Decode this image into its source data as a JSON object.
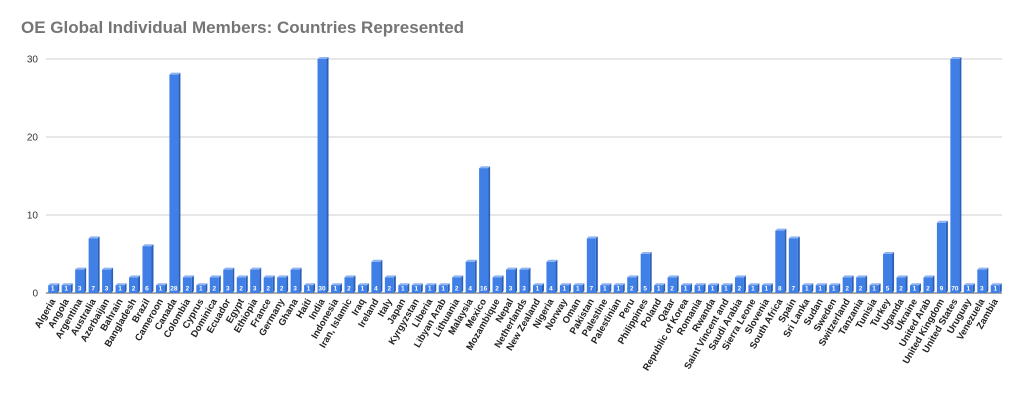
{
  "chart_data": {
    "type": "bar",
    "title": "OE Global Individual Members: Countries Represented",
    "xlabel": "",
    "ylabel": "",
    "ylim": [
      0,
      30
    ],
    "yticks": [
      0,
      10,
      20,
      30
    ],
    "grid": true,
    "legend": "none",
    "bar_color": "#3f7fe6",
    "categories": [
      "Algeria",
      "Angola",
      "Argentina",
      "Australia",
      "Azerbaijan",
      "Bahrain",
      "Bangladesh",
      "Brazil",
      "Cameroon",
      "Canada",
      "Colombia",
      "Cyprus",
      "Dominica",
      "Ecuador",
      "Egypt",
      "Ethiopia",
      "France",
      "Germany",
      "Ghana",
      "Haiti",
      "India",
      "Indonesia",
      "Iran, Islamic",
      "Iraq",
      "Ireland",
      "Italy",
      "Japan",
      "Kyrgyzstan",
      "Liberia",
      "Libyan Arab",
      "Lithuania",
      "Malaysia",
      "Mexico",
      "Mozambique",
      "Nepal",
      "Netherlands",
      "New Zealand",
      "Nigeria",
      "Norway",
      "Oman",
      "Pakistan",
      "Palestine",
      "Palestinian",
      "Peru",
      "Philippines",
      "Poland",
      "Qatar",
      "Republic of Korea",
      "Romania",
      "Rwanda",
      "Saint Vincent and",
      "Saudi Arabia",
      "Sierra Leone",
      "Slovenia",
      "South Africa",
      "Spain",
      "Sri Lanka",
      "Sudan",
      "Sweden",
      "Switzerland",
      "Tanzania",
      "Tunisia",
      "Turkey",
      "Uganda",
      "Ukraine",
      "United Arab",
      "United Kingdom",
      "United States",
      "Uruguay",
      "Venezuela",
      "Zambia"
    ],
    "values": [
      1,
      1,
      3,
      7,
      3,
      1,
      2,
      6,
      1,
      28,
      2,
      1,
      2,
      3,
      2,
      3,
      2,
      2,
      3,
      1,
      30,
      1,
      2,
      1,
      4,
      2,
      1,
      1,
      1,
      1,
      2,
      4,
      16,
      2,
      3,
      3,
      1,
      4,
      1,
      1,
      7,
      1,
      1,
      2,
      5,
      1,
      2,
      1,
      1,
      1,
      1,
      2,
      1,
      1,
      8,
      7,
      1,
      1,
      1,
      2,
      2,
      1,
      5,
      2,
      1,
      2,
      9,
      70,
      1,
      3,
      1
    ],
    "data_labels": [
      "1",
      "1",
      "3",
      "7",
      "3",
      "1",
      "2",
      "6",
      "1",
      "28",
      "2",
      "1",
      "2",
      "3",
      "2",
      "3",
      "2",
      "2",
      "3",
      "1",
      "30",
      "1",
      "2",
      "1",
      "4",
      "2",
      "1",
      "1",
      "1",
      "1",
      "2",
      "4",
      "16",
      "2",
      "3",
      "3",
      "1",
      "4",
      "1",
      "1",
      "7",
      "1",
      "1",
      "2",
      "5",
      "1",
      "2",
      "1",
      "1",
      "1",
      "1",
      "2",
      "1",
      "1",
      "8",
      "7",
      "1",
      "1",
      "1",
      "2",
      "2",
      "1",
      "5",
      "2",
      "1",
      "2",
      "9",
      "70",
      "1",
      "3",
      "1"
    ]
  }
}
